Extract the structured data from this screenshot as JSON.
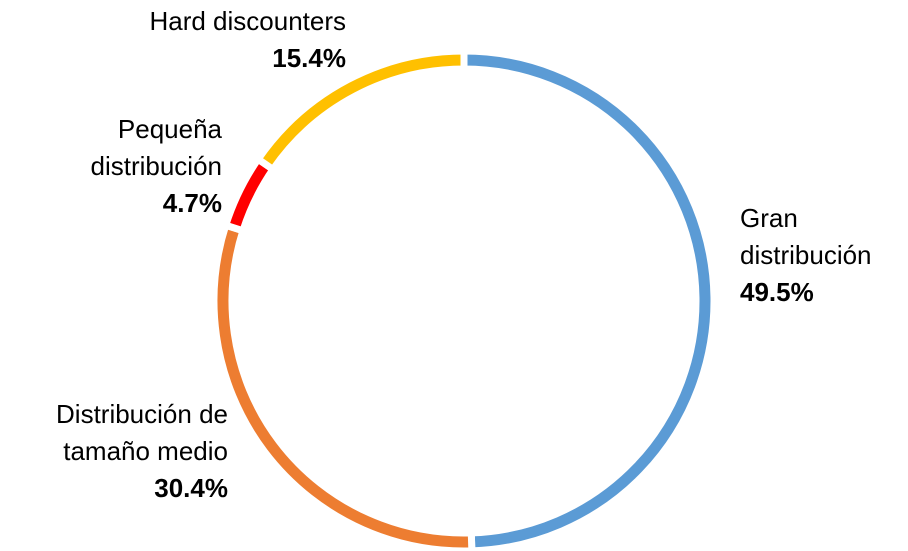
{
  "chart_data": {
    "type": "donut",
    "categories": [
      "Gran\ndistribución",
      "Distribución de\ntamaño medio",
      "Pequeña\ndistribución",
      "Hard discounters"
    ],
    "values": [
      49.5,
      30.4,
      4.7,
      15.4
    ],
    "value_labels": [
      "49.5%",
      "30.4%",
      "4.7%",
      "15.4%"
    ],
    "colors": [
      "#5b9bd5",
      "#ed7d31",
      "#ff0000",
      "#ffc000"
    ]
  }
}
